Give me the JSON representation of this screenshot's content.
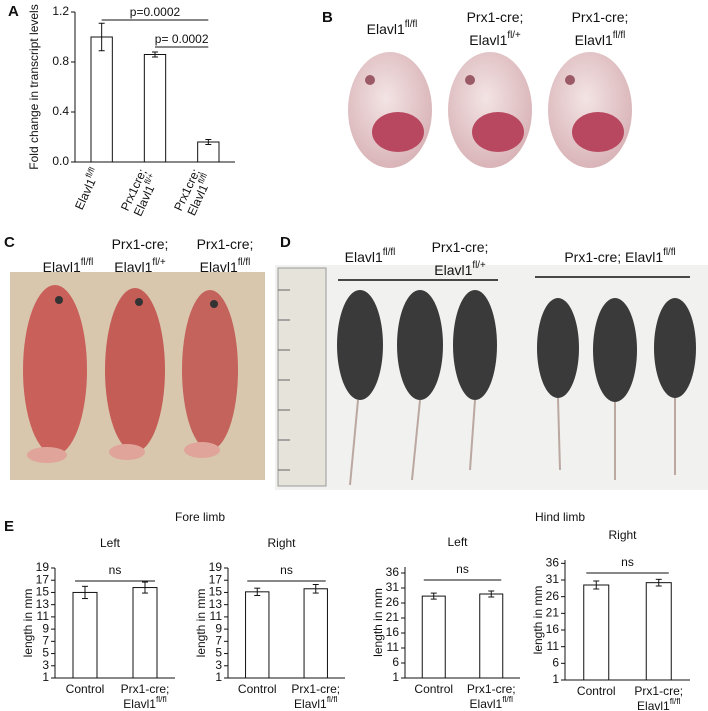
{
  "panel_labels": [
    "A",
    "B",
    "C",
    "D",
    "E"
  ],
  "photo_labels": {
    "B": [
      [
        {
          "text": "Elavl1",
          "sup": "fl/fl"
        }
      ],
      [
        "Prx1-cre;",
        {
          "text": "Elavl1",
          "sup": "fl/+"
        }
      ],
      [
        "Prx1-cre;",
        {
          "text": "Elavl1",
          "sup": "fl/fl"
        }
      ]
    ],
    "C": [
      [
        {
          "text": "Elavl1",
          "sup": "fl/fl"
        }
      ],
      [
        "Prx1-cre;",
        {
          "text": "Elavl1",
          "sup": "fl/+"
        }
      ],
      [
        "Prx1-cre;",
        {
          "text": "Elavl1",
          "sup": "fl/fl"
        }
      ]
    ],
    "D": [
      [
        {
          "text": "Elavl1",
          "sup": "fl/fl"
        }
      ],
      [
        "Prx1-cre;",
        {
          "text": "Elavl1",
          "sup": "fl/+"
        }
      ],
      [
        {
          "text": "Prx1-cre; Elavl1",
          "sup": "fl/fl"
        }
      ]
    ]
  },
  "e_groups": [
    "Fore limb",
    "Hind limb"
  ],
  "chart_data": [
    {
      "type": "bar",
      "ylabel": "Fold change in transcript levels",
      "color": "#ffffff",
      "categories": [
        [
          {
            "text": "Elavl1",
            "sup": "fl/fl"
          }
        ],
        [
          "Prx1cre;",
          {
            "text": "Elavl1",
            "sup": "fl/+"
          }
        ],
        [
          "Prx1cre;",
          {
            "text": "Elavl1",
            "sup": "fl/fl"
          }
        ]
      ],
      "values": [
        1.0,
        0.86,
        0.16
      ],
      "errors": [
        0.11,
        0.02,
        0.02
      ],
      "ylim": [
        0,
        1.2
      ],
      "yticks": [
        {
          "value": 0,
          "label": "0.0"
        },
        0.4,
        0.8,
        1.2
      ],
      "annotations": [
        "p=0.0002",
        "p= 0.0002"
      ]
    },
    {
      "type": "bar",
      "title": "Left",
      "ylabel": "length in mm",
      "color": "#ffffff",
      "categories": [
        [
          "Control"
        ],
        [
          "Prx1-cre;",
          {
            "text": "Elavl1",
            "sup": "fl/fl"
          }
        ]
      ],
      "values": [
        15,
        15.8
      ],
      "errors": [
        1,
        0.9
      ],
      "ylim": [
        1,
        19
      ],
      "yticks": [
        1,
        3,
        5,
        7,
        9,
        11,
        13,
        15,
        17,
        19
      ],
      "annotations": [
        "ns"
      ]
    },
    {
      "type": "bar",
      "title": "Right",
      "ylabel": "length in mm",
      "color": "#ffffff",
      "categories": [
        [
          "Control"
        ],
        [
          "Prx1-cre;",
          {
            "text": "Elavl1",
            "sup": "fl/fl"
          }
        ]
      ],
      "values": [
        15.1,
        15.6
      ],
      "errors": [
        0.6,
        0.7
      ],
      "ylim": [
        1,
        19
      ],
      "yticks": [
        1,
        3,
        5,
        7,
        9,
        11,
        13,
        15,
        17,
        19
      ],
      "annotations": [
        "ns"
      ]
    },
    {
      "type": "bar",
      "title": "Left",
      "ylabel": "length in mm",
      "color": "#ffffff",
      "categories": [
        [
          "Control"
        ],
        [
          "Prx1-cre;",
          {
            "text": "Elavl1",
            "sup": "fl/fl"
          }
        ]
      ],
      "values": [
        28.3,
        29
      ],
      "errors": [
        1,
        1
      ],
      "ylim": [
        1,
        38
      ],
      "yticks": [
        1,
        6,
        11,
        16,
        21,
        26,
        31,
        36
      ],
      "annotations": [
        "ns"
      ]
    },
    {
      "type": "bar",
      "title": "Right",
      "ylabel": "length in mm",
      "color": "#ffffff",
      "categories": [
        [
          "Control"
        ],
        [
          "Prx1-cre;",
          {
            "text": "Elavl1",
            "sup": "fl/fl"
          }
        ]
      ],
      "values": [
        29.5,
        30.2
      ],
      "errors": [
        1.2,
        1
      ],
      "ylim": [
        1,
        37
      ],
      "yticks": [
        1,
        6,
        11,
        16,
        21,
        26,
        31,
        36
      ],
      "annotations": [
        "ns"
      ]
    }
  ]
}
